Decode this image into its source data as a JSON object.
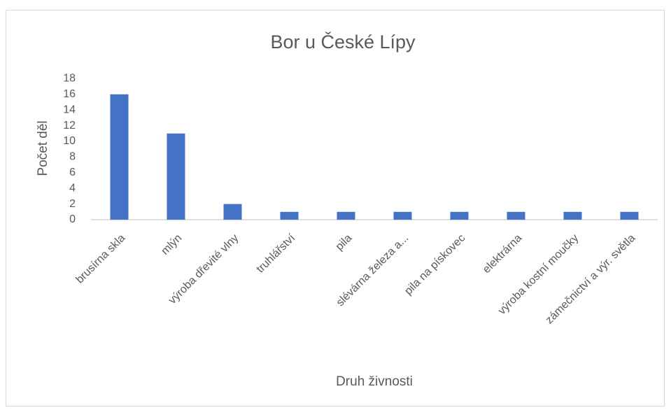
{
  "chart_data": {
    "type": "bar",
    "title": "Bor u České Lípy",
    "categories": [
      "brusírna skla",
      "mlýn",
      "výroba dřevité vlny",
      "truhlářství",
      "pila",
      "slévárna železa a...",
      "pila na pískovec",
      "elektrárna",
      "výroba kostní moučky",
      "zámečnictví a výr. světla"
    ],
    "values": [
      16,
      11,
      2,
      1,
      1,
      1,
      1,
      1,
      1,
      1
    ],
    "color": "#4472c4",
    "ylim": [
      0,
      18
    ],
    "yticks": [
      0,
      2,
      4,
      6,
      8,
      10,
      12,
      14,
      16,
      18
    ],
    "ylabel": "Počet děl",
    "xlabel": "Druh živnosti",
    "grid": false
  }
}
